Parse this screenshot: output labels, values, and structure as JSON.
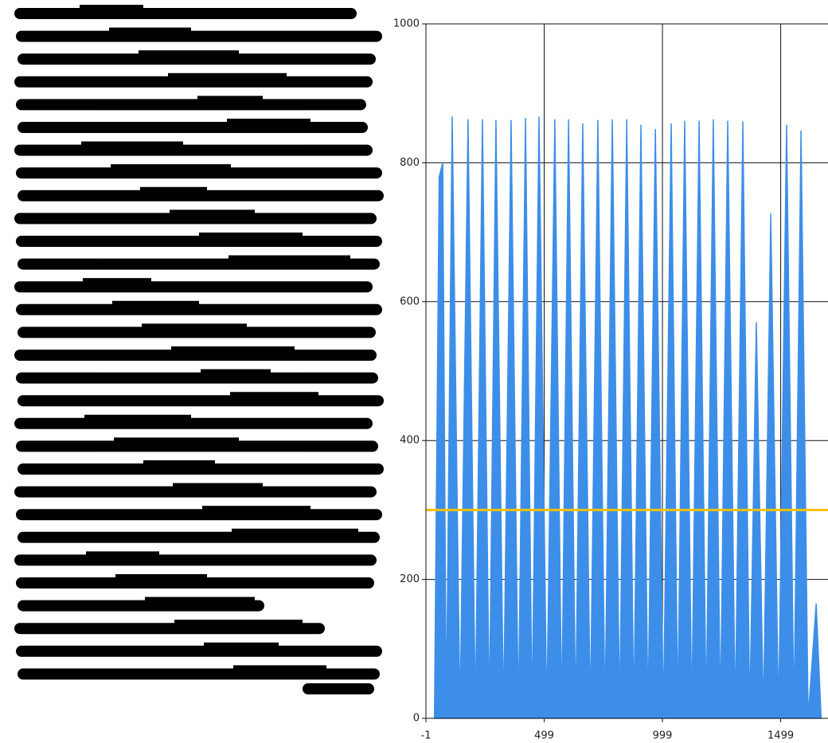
{
  "chart_data": {
    "type": "area",
    "x": [
      35,
      55,
      70,
      85,
      110,
      143,
      177,
      208,
      238,
      267,
      295,
      327,
      359,
      390,
      420,
      448,
      477,
      510,
      544,
      573,
      602,
      632,
      662,
      694,
      726,
      756,
      787,
      818,
      848,
      878,
      908,
      938,
      969,
      1003,
      1036,
      1064,
      1093,
      1123,
      1154,
      1184,
      1214,
      1244,
      1275,
      1307,
      1339,
      1368,
      1396,
      1426,
      1457,
      1490,
      1524,
      1555,
      1585,
      1615,
      1649,
      1670
    ],
    "series": [
      {
        "color": "#3d8ee8",
        "values": [
          0,
          780,
          800,
          0,
          866,
          0,
          862,
          0,
          862,
          0,
          861,
          0,
          861,
          0,
          864,
          0,
          866,
          0,
          862,
          0,
          862,
          0,
          856,
          0,
          861,
          0,
          862,
          0,
          862,
          0,
          854,
          0,
          848,
          0,
          856,
          0,
          860,
          0,
          860,
          0,
          862,
          0,
          860,
          0,
          859,
          0,
          570,
          0,
          726,
          0,
          854,
          0,
          846,
          0,
          165,
          0
        ]
      }
    ],
    "threshold": {
      "value": 300,
      "color": "#f5c000"
    },
    "xlim": [
      -1,
      1699
    ],
    "ylim": [
      0,
      1000
    ],
    "xticks": [
      -1,
      499,
      999,
      1499
    ],
    "yticks": [
      0,
      200,
      400,
      600,
      800,
      1000
    ],
    "grid": true
  }
}
